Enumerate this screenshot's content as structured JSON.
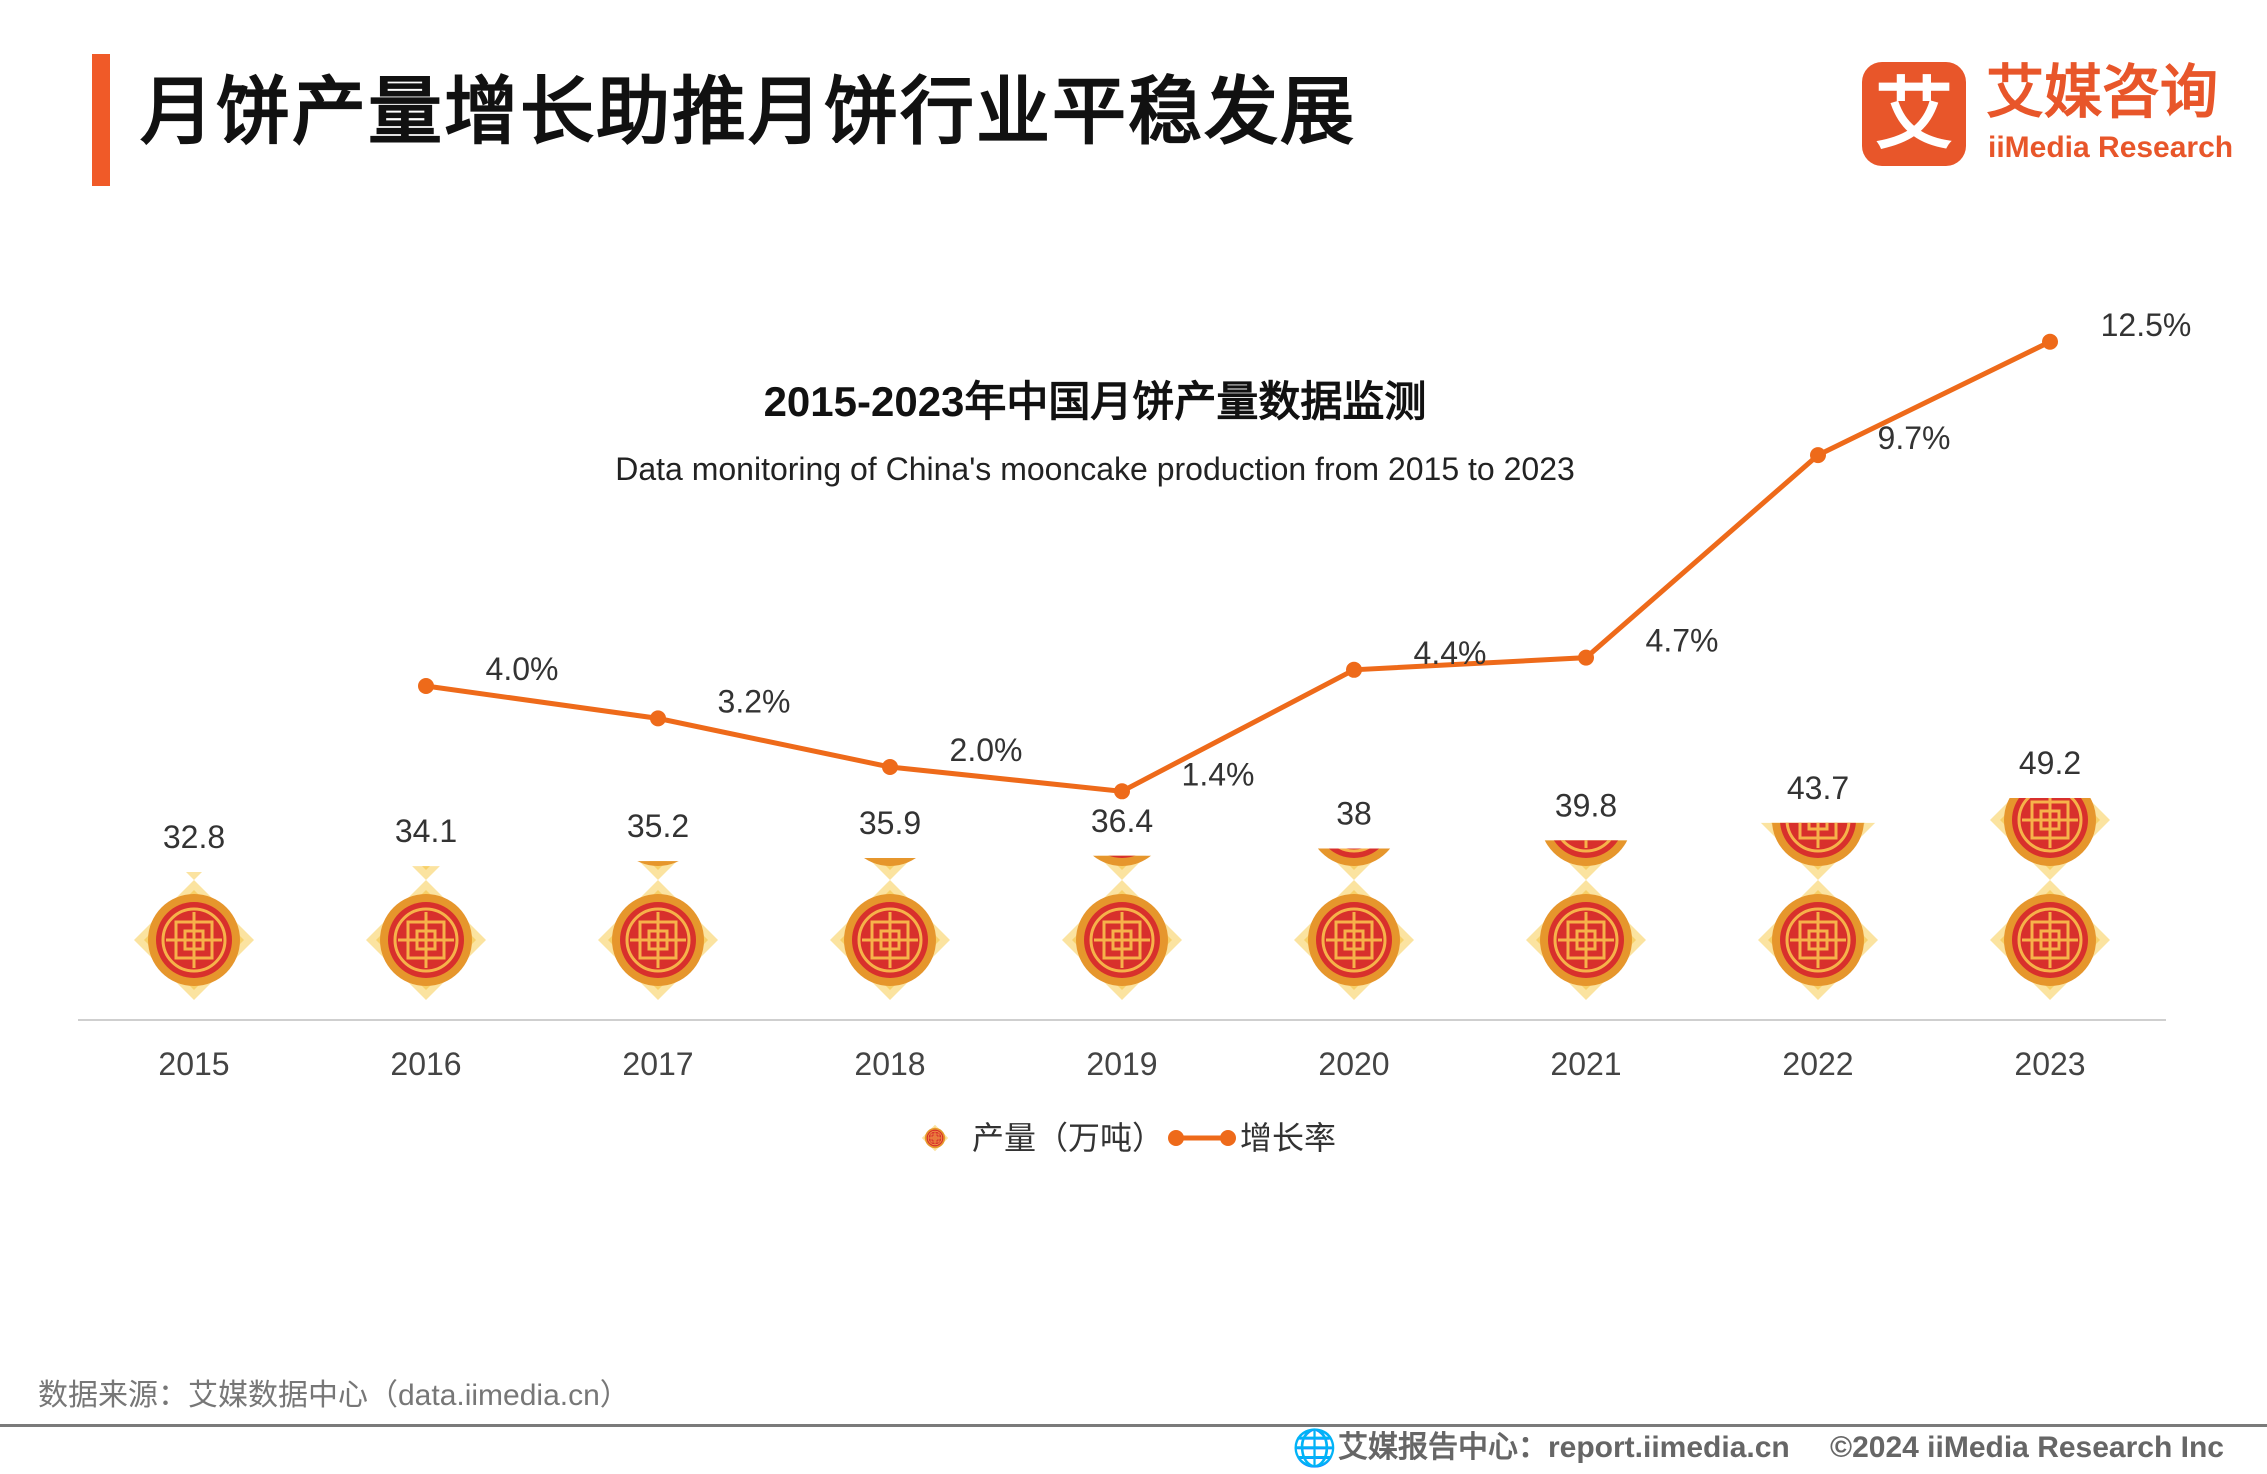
{
  "header": {
    "title": "月饼产量增长助推月饼行业平稳发展",
    "accent_color": "#f05a28"
  },
  "logo": {
    "mark": "艾",
    "name_cn": "艾媒咨询",
    "name_en": "iiMedia Research",
    "color": "#e8562a"
  },
  "chart_data": {
    "type": "bar",
    "title": "2015-2023年中国月饼产量数据监测",
    "subtitle": "Data monitoring of China's mooncake production from 2015 to 2023",
    "categories": [
      "2015",
      "2016",
      "2017",
      "2018",
      "2019",
      "2020",
      "2021",
      "2022",
      "2023"
    ],
    "series": [
      {
        "name": "产量（万吨）",
        "type": "bar",
        "icon": "mooncake-icon",
        "values": [
          32.8,
          34.1,
          35.2,
          35.9,
          36.4,
          38,
          39.8,
          43.7,
          49.2
        ],
        "labels": [
          "32.8",
          "34.1",
          "35.2",
          "35.9",
          "36.4",
          "38",
          "39.8",
          "43.7",
          "49.2"
        ]
      },
      {
        "name": "增长率",
        "type": "line",
        "color": "#ee6a1a",
        "values": [
          null,
          4.0,
          3.2,
          2.0,
          1.4,
          4.4,
          4.7,
          9.7,
          12.5
        ],
        "labels": [
          "",
          "4.0%",
          "3.2%",
          "2.0%",
          "1.4%",
          "4.4%",
          "4.7%",
          "9.7%",
          "12.5%"
        ]
      }
    ],
    "legend_position": "bottom-center",
    "grid": false
  },
  "footer": {
    "source": "数据来源：艾媒数据中心（data.iimedia.cn）",
    "report": "艾媒报告中心：report.iimedia.cn",
    "copyright": "©2024  iiMedia Research  Inc",
    "globe_icon": "globe-icon"
  }
}
